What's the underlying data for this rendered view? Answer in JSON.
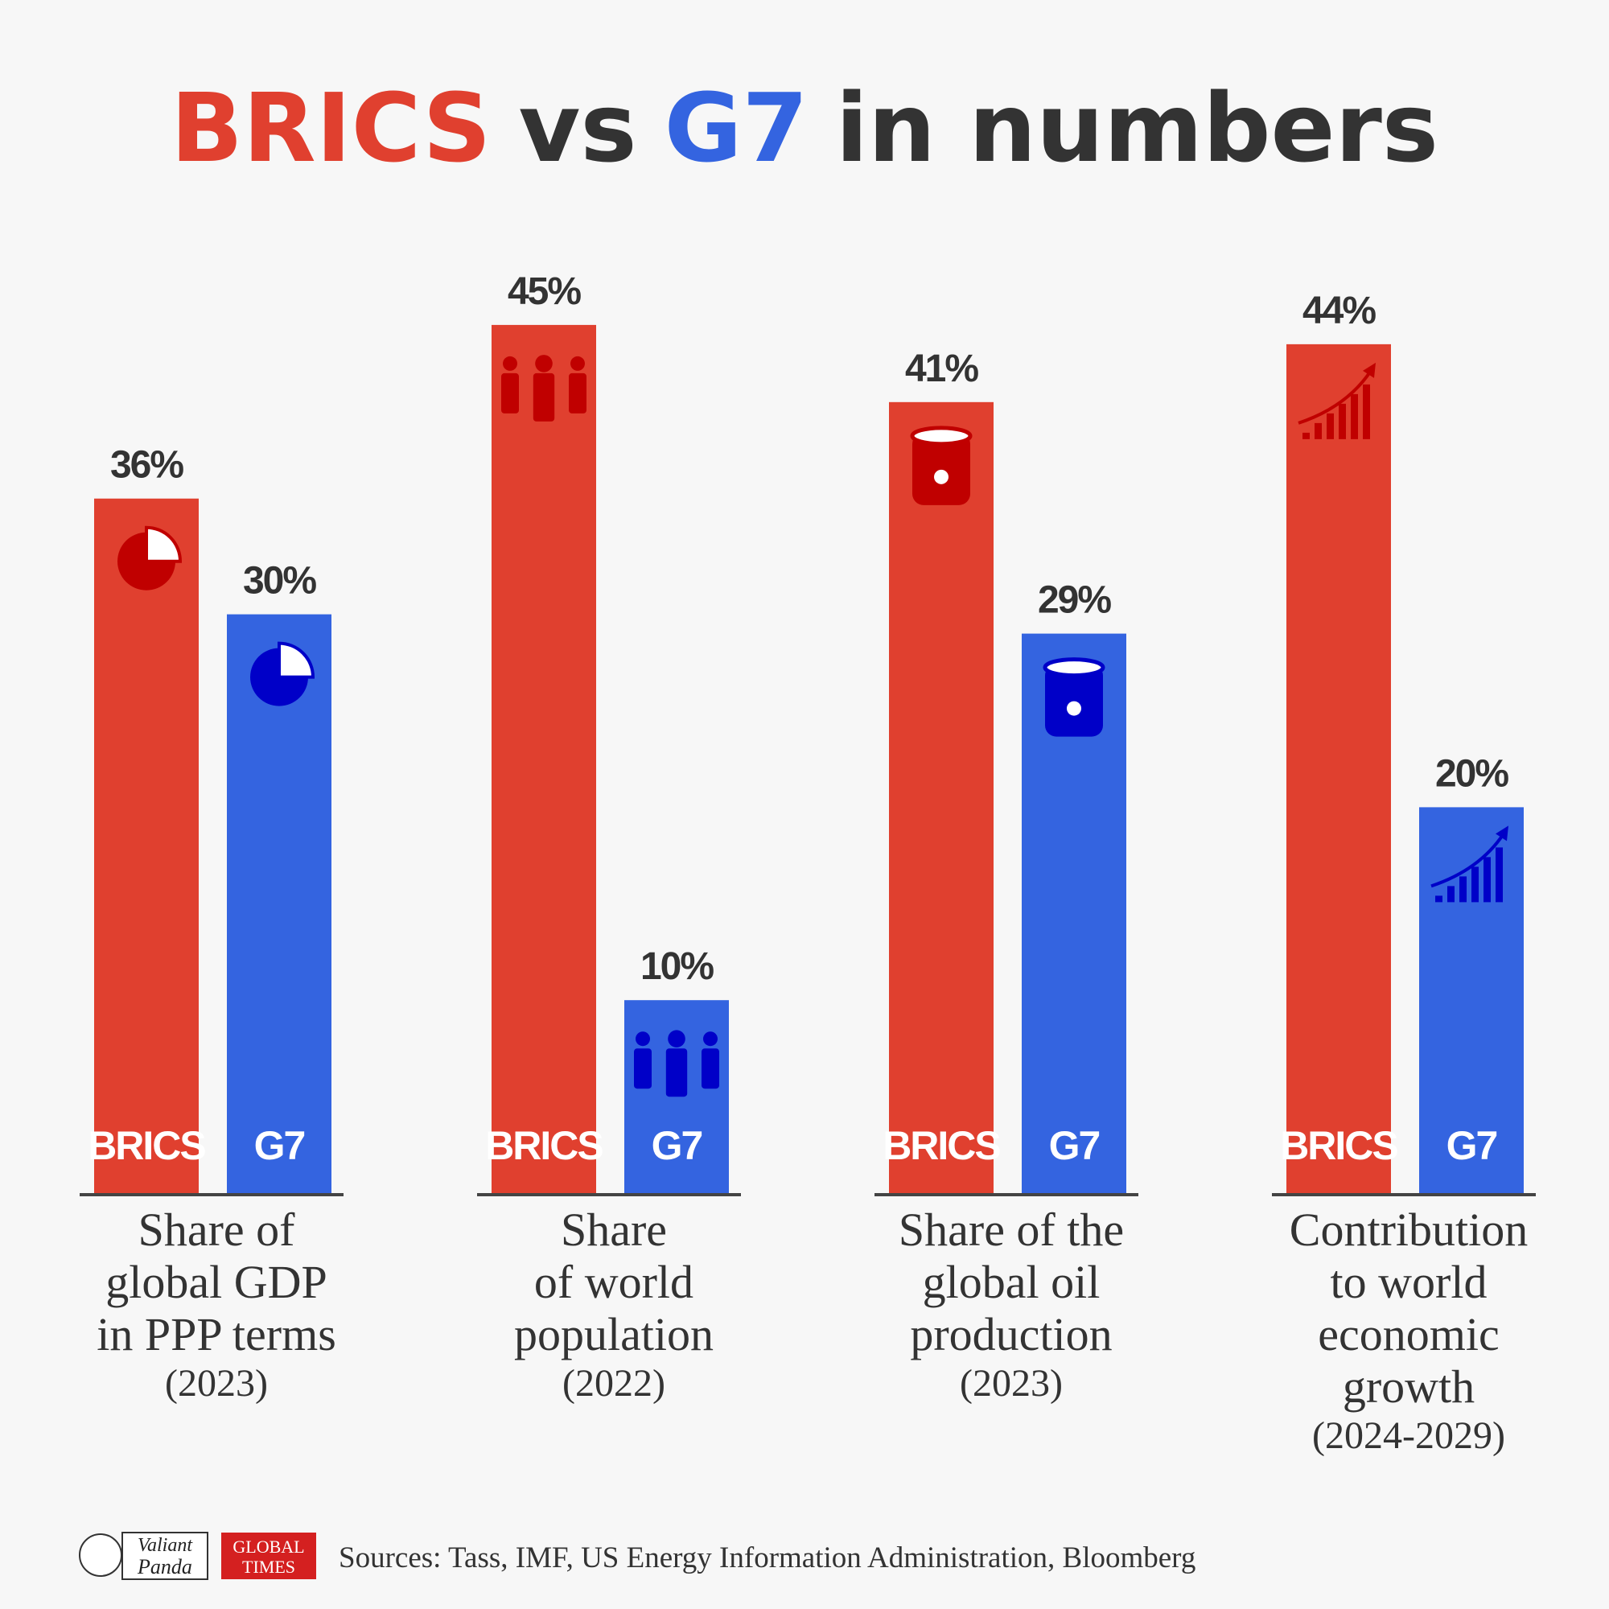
{
  "title": [
    {
      "text": "BRICS",
      "color": "#e0402f"
    },
    {
      "text": "vs",
      "color": "#333333"
    },
    {
      "text": "G7",
      "color": "#3464e0"
    },
    {
      "text": "in numbers",
      "color": "#333333"
    }
  ],
  "chart_data": [
    {
      "type": "bar",
      "categories": [
        "BRICS",
        "G7"
      ],
      "values": [
        36,
        30
      ],
      "value_labels": [
        "36%",
        "30%"
      ],
      "colors": [
        "#e0402f",
        "#3464e0"
      ],
      "label": [
        "Share of",
        "global GDP",
        "in PPP terms"
      ],
      "period": "(2023)"
    },
    {
      "type": "bar",
      "categories": [
        "BRICS",
        "G7"
      ],
      "values": [
        45,
        10
      ],
      "value_labels": [
        "45%",
        "10%"
      ],
      "colors": [
        "#e0402f",
        "#3464e0"
      ],
      "label": [
        "Share",
        "of world",
        "population"
      ],
      "period": "(2022)"
    },
    {
      "type": "bar",
      "categories": [
        "BRICS",
        "G7"
      ],
      "values": [
        41,
        29
      ],
      "value_labels": [
        "41%",
        "29%"
      ],
      "colors": [
        "#e0402f",
        "#3464e0"
      ],
      "label": [
        "Share of the",
        "global oil",
        "production"
      ],
      "period": "(2023)"
    },
    {
      "type": "bar",
      "categories": [
        "BRICS",
        "G7"
      ],
      "values": [
        44,
        20
      ],
      "value_labels": [
        "44%",
        "20%"
      ],
      "colors": [
        "#e0402f",
        "#3464e0"
      ],
      "label": [
        "Contribution",
        "to world",
        "economic",
        "growth"
      ],
      "period": "(2024-2029)"
    }
  ],
  "footer": {
    "logos": [
      "Valiant",
      "Panda",
      "GLOBAL",
      "TIMES"
    ],
    "source": "Sources: Tass, IMF, US Energy Information Administration, Bloomberg"
  }
}
